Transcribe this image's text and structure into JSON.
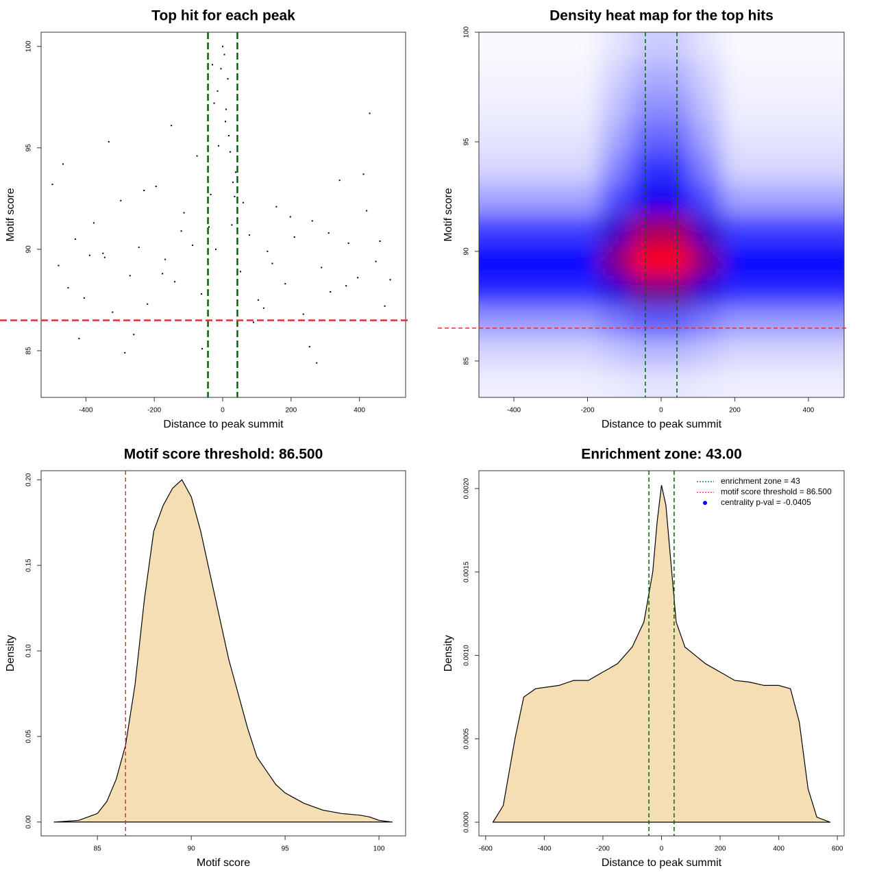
{
  "chart_data": [
    {
      "type": "scatter",
      "title": "Top hit for each peak",
      "xlabel": "Distance to peak summit",
      "ylabel": "Motif score",
      "color": "#000000",
      "x": [
        -480,
        -452,
        -431,
        -405,
        -377,
        -350,
        -322,
        -298,
        -271,
        -245,
        -220,
        -195,
        -168,
        -140,
        -113,
        -88,
        -62,
        -35,
        -12,
        8,
        27,
        52,
        78,
        104,
        131,
        157,
        183,
        210,
        236,
        262,
        289,
        315,
        342,
        368,
        395,
        421,
        448,
        474,
        -467,
        -420,
        -389,
        -333,
        -286,
        -230,
        -176,
        -121,
        -75,
        -25,
        15,
        38,
        90,
        145,
        198,
        254,
        310,
        361,
        412,
        460,
        -30,
        -15,
        0,
        10,
        22,
        35,
        -40,
        -5,
        18,
        30,
        -20,
        5,
        -498,
        -260,
        -150,
        120,
        275,
        430,
        490,
        -345,
        60,
        -60
      ],
      "values": [
        89.2,
        88.1,
        90.5,
        87.6,
        91.3,
        89.8,
        86.9,
        92.4,
        88.7,
        90.1,
        87.3,
        93.1,
        89.5,
        88.4,
        91.8,
        90.2,
        87.8,
        92.7,
        95.1,
        96.3,
        91.2,
        88.9,
        90.7,
        87.5,
        89.9,
        92.1,
        88.3,
        90.6,
        86.8,
        91.4,
        89.1,
        87.9,
        93.4,
        90.3,
        88.6,
        91.9,
        89.4,
        87.2,
        94.2,
        85.6,
        89.7,
        95.3,
        84.9,
        92.9,
        88.8,
        90.9,
        94.6,
        97.2,
        98.4,
        93.8,
        86.4,
        89.3,
        91.6,
        85.2,
        90.8,
        88.2,
        93.7,
        90.4,
        99.1,
        97.8,
        100,
        96.9,
        94.8,
        92.6,
        91.1,
        98.9,
        95.6,
        93.3,
        90,
        99.6,
        93.2,
        85.8,
        96.1,
        87.1,
        84.4,
        96.7,
        88.5,
        89.6,
        92.3,
        85.1
      ],
      "xlim": [
        -531,
        535
      ],
      "ylim": [
        82.7,
        100.7
      ],
      "xticks": [
        -400,
        -200,
        0,
        200,
        400
      ],
      "yticks": [
        85,
        90,
        95,
        100
      ],
      "vlines": [
        -43,
        43
      ],
      "vline_color": "#006400",
      "hlines": [
        86.5
      ],
      "hline_color": "#e03030"
    },
    {
      "type": "heatmap",
      "title": "Density heat map for the top hits",
      "xlabel": "Distance to peak summit",
      "ylabel": "Motif score",
      "x": [
        -450,
        -368,
        -286,
        -205,
        -123,
        -41,
        41,
        123,
        205,
        286,
        368,
        450
      ],
      "y": [
        84,
        85.4,
        86.8,
        88.2,
        89.6,
        91,
        92.4,
        93.8,
        95.2,
        96.6,
        98,
        99.4
      ],
      "z": [
        [
          0.03,
          0.03,
          0.03,
          0.03,
          0.04,
          0.05,
          0.05,
          0.04,
          0.03,
          0.03,
          0.03,
          0.03
        ],
        [
          0.08,
          0.08,
          0.08,
          0.08,
          0.11,
          0.14,
          0.14,
          0.11,
          0.08,
          0.08,
          0.08,
          0.08
        ],
        [
          0.2,
          0.2,
          0.2,
          0.2,
          0.26,
          0.32,
          0.32,
          0.26,
          0.2,
          0.2,
          0.2,
          0.2
        ],
        [
          0.42,
          0.42,
          0.42,
          0.42,
          0.57,
          0.72,
          0.72,
          0.57,
          0.42,
          0.42,
          0.42,
          0.42
        ],
        [
          0.5,
          0.5,
          0.5,
          0.5,
          0.75,
          1,
          1,
          0.75,
          0.5,
          0.5,
          0.5,
          0.5
        ],
        [
          0.38,
          0.38,
          0.38,
          0.38,
          0.6,
          0.82,
          0.82,
          0.6,
          0.38,
          0.38,
          0.38,
          0.38
        ],
        [
          0.18,
          0.18,
          0.18,
          0.18,
          0.35,
          0.52,
          0.52,
          0.35,
          0.18,
          0.18,
          0.18,
          0.18
        ],
        [
          0.08,
          0.08,
          0.08,
          0.08,
          0.24,
          0.4,
          0.4,
          0.24,
          0.08,
          0.08,
          0.08,
          0.08
        ],
        [
          0.05,
          0.05,
          0.05,
          0.05,
          0.17,
          0.3,
          0.3,
          0.17,
          0.05,
          0.05,
          0.05,
          0.05
        ],
        [
          0.03,
          0.03,
          0.03,
          0.03,
          0.12,
          0.22,
          0.22,
          0.12,
          0.03,
          0.03,
          0.03,
          0.03
        ],
        [
          0.02,
          0.02,
          0.02,
          0.02,
          0.09,
          0.16,
          0.16,
          0.09,
          0.02,
          0.02,
          0.02,
          0.02
        ],
        [
          0.01,
          0.01,
          0.01,
          0.01,
          0.05,
          0.1,
          0.1,
          0.05,
          0.01,
          0.01,
          0.01,
          0.01
        ]
      ],
      "xlim": [
        -495,
        497
      ],
      "ylim": [
        83.34,
        100
      ],
      "xticks": [
        -400,
        -200,
        0,
        200,
        400
      ],
      "yticks": [
        85,
        90,
        95,
        100
      ],
      "vlines": [
        -43,
        43
      ],
      "vline_color": "#006400",
      "hlines": [
        86.5
      ],
      "hline_color": "#e03030"
    },
    {
      "type": "area",
      "title": "Motif score threshold: 86.500",
      "xlabel": "Motif score",
      "ylabel": "Density",
      "color": "#f5deb3",
      "x": [
        82.7,
        84,
        85,
        85.5,
        86,
        86.5,
        87,
        87.5,
        88,
        88.5,
        89,
        89.5,
        90,
        90.5,
        91,
        91.5,
        92,
        92.5,
        93,
        93.5,
        94,
        94.5,
        95,
        95.5,
        96,
        96.5,
        97,
        98,
        99,
        99.5,
        100,
        100.7
      ],
      "values": [
        0,
        0.001,
        0.005,
        0.012,
        0.025,
        0.045,
        0.08,
        0.13,
        0.17,
        0.185,
        0.195,
        0.2,
        0.19,
        0.17,
        0.145,
        0.12,
        0.095,
        0.075,
        0.055,
        0.038,
        0.03,
        0.022,
        0.017,
        0.014,
        0.011,
        0.009,
        0.007,
        0.005,
        0.004,
        0.003,
        0.001,
        0
      ],
      "xlim": [
        82,
        101.42
      ],
      "ylim": [
        -0.0081,
        0.2053
      ],
      "xticks": [
        85,
        90,
        95,
        100
      ],
      "yticks": [
        {
          "value": 0,
          "label": "0.00"
        },
        {
          "value": 0.05,
          "label": "0.05"
        },
        {
          "value": 0.1,
          "label": "0.10"
        },
        {
          "value": 0.15,
          "label": "0.15"
        },
        {
          "value": 0.2,
          "label": "0.20"
        }
      ],
      "vlines": [
        86.5
      ],
      "vline_color": "#e03030"
    },
    {
      "type": "area",
      "title": "Enrichment zone: 43.00",
      "xlabel": "Distance to peak summit",
      "ylabel": "Density",
      "color": "#f5deb3",
      "x": [
        -575,
        -540,
        -500,
        -470,
        -430,
        -350,
        -300,
        -250,
        -200,
        -150,
        -100,
        -60,
        -30,
        -15,
        0,
        15,
        30,
        50,
        80,
        150,
        200,
        250,
        300,
        350,
        400,
        440,
        470,
        500,
        530,
        575
      ],
      "values": [
        0,
        0.0001,
        0.0005,
        0.00075,
        0.0008,
        0.00082,
        0.00085,
        0.00085,
        0.0009,
        0.00095,
        0.00105,
        0.0012,
        0.0015,
        0.0018,
        0.00202,
        0.0019,
        0.0016,
        0.0012,
        0.00105,
        0.00095,
        0.0009,
        0.00085,
        0.00084,
        0.00082,
        0.00082,
        0.0008,
        0.0006,
        0.0002,
        3e-05,
        0
      ],
      "xlim": [
        -623,
        623
      ],
      "ylim": [
        -8.2e-05,
        0.002107
      ],
      "xticks": [
        -600,
        -400,
        -200,
        0,
        200,
        400,
        600
      ],
      "yticks": [
        {
          "value": 0,
          "label": "0.0000"
        },
        {
          "value": 0.0005,
          "label": "0.0005"
        },
        {
          "value": 0.001,
          "label": "0.0010"
        },
        {
          "value": 0.0015,
          "label": "0.0015"
        },
        {
          "value": 0.002,
          "label": "0.0020"
        }
      ],
      "vlines": [
        -43,
        43
      ],
      "vline_color": "#006400",
      "legend_position": "topright",
      "legend": [
        {
          "label": "enrichment zone = 43",
          "color": "#006400",
          "symbol": "line"
        },
        {
          "label": "motif score threshold = 86.500",
          "color": "#e03030",
          "symbol": "line"
        },
        {
          "label": "centrality p-val = -0.0405",
          "color": "#0000ff",
          "symbol": "point"
        }
      ]
    }
  ]
}
